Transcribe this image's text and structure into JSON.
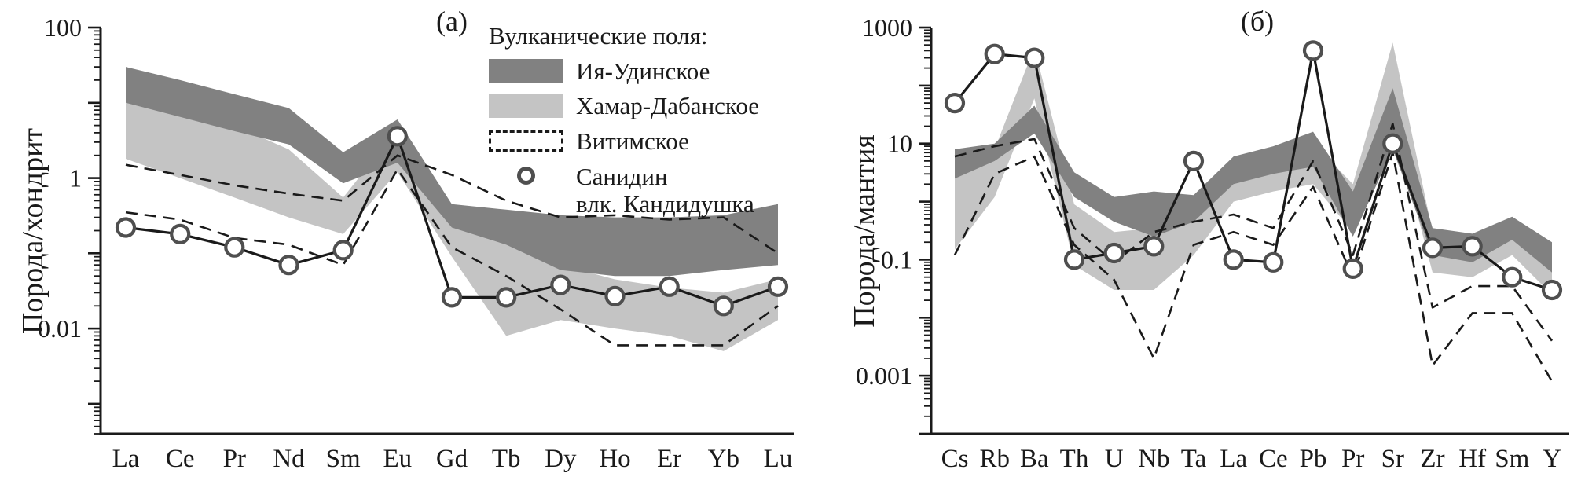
{
  "figure": {
    "background": "#ffffff",
    "colors": {
      "dark_field": "#818181",
      "light_field": "#c4c4c4",
      "line": "#1a1a1a",
      "marker_stroke": "#4f4f4f",
      "marker_fill": "#ffffff"
    },
    "legend": {
      "title": "Вулканические поля:",
      "position": "inside-top-right-of-left-panel",
      "items": [
        {
          "type": "fill-dark",
          "label": "Ия-Удинское"
        },
        {
          "type": "fill-light",
          "label": "Хамар-Дабанское"
        },
        {
          "type": "dashed",
          "label": "Витимское"
        },
        {
          "type": "marker",
          "label": "Санидин",
          "label2": "влк. Кандидушка"
        }
      ]
    }
  },
  "chart_data": [
    {
      "id": "a",
      "type": "area",
      "panel_label": "(а)",
      "ylabel": "Порода/хондрит",
      "y_scale": "log",
      "ylim": [
        0.0004,
        100
      ],
      "grid": false,
      "categories": [
        "La",
        "Ce",
        "Pr",
        "Nd",
        "Sm",
        "Eu",
        "Gd",
        "Tb",
        "Dy",
        "Ho",
        "Er",
        "Yb",
        "Lu"
      ],
      "y_ticks": [
        {
          "v": 100,
          "label": "100"
        },
        {
          "v": 1,
          "label": "1"
        },
        {
          "v": 0.01,
          "label": "0.01"
        }
      ],
      "series": [
        {
          "id": "iya-udinskoe",
          "name": "Ия-Удинское",
          "kind": "band",
          "style": "fill-dark",
          "upper": [
            30,
            20,
            13,
            8.5,
            2.2,
            6,
            0.45,
            0.38,
            0.32,
            0.3,
            0.3,
            0.32,
            0.45
          ],
          "lower": [
            10,
            6.5,
            4.2,
            2.8,
            0.85,
            1.6,
            0.22,
            0.13,
            0.06,
            0.05,
            0.05,
            0.06,
            0.07
          ]
        },
        {
          "id": "khamar-dabanskoe",
          "name": "Хамар-Дабанское",
          "kind": "band",
          "style": "fill-light",
          "upper": [
            16,
            9,
            5,
            2.4,
            0.55,
            4.5,
            0.38,
            0.16,
            0.07,
            0.045,
            0.035,
            0.03,
            0.045
          ],
          "lower": [
            1.8,
            1.0,
            0.55,
            0.3,
            0.18,
            1.2,
            0.09,
            0.008,
            0.013,
            0.01,
            0.008,
            0.005,
            0.013
          ]
        },
        {
          "id": "vitimskoe",
          "name": "Витимское",
          "kind": "dashed-band",
          "upper": [
            1.5,
            1.1,
            0.8,
            0.62,
            0.5,
            2.0,
            1.1,
            0.5,
            0.3,
            0.32,
            0.28,
            0.3,
            0.1
          ],
          "lower": [
            0.35,
            0.28,
            0.16,
            0.13,
            0.07,
            1.3,
            0.12,
            0.05,
            0.018,
            0.006,
            0.006,
            0.006,
            0.02
          ]
        },
        {
          "id": "sanidin",
          "name": "Санидин влк. Кандидушка",
          "kind": "line-markers",
          "values": [
            0.22,
            0.18,
            0.12,
            0.07,
            0.11,
            3.6,
            0.026,
            0.026,
            0.038,
            0.027,
            0.036,
            0.02,
            0.036
          ]
        }
      ]
    },
    {
      "id": "b",
      "type": "area",
      "panel_label": "(б)",
      "ylabel": "Порода/мантия",
      "y_scale": "log",
      "ylim": [
        0.0001,
        1000
      ],
      "grid": false,
      "categories": [
        "Cs",
        "Rb",
        "Ba",
        "Th",
        "U",
        "Nb",
        "Ta",
        "La",
        "Ce",
        "Pb",
        "Pr",
        "Sr",
        "Zr",
        "Hf",
        "Sm",
        "Y"
      ],
      "y_ticks": [
        {
          "v": 1000,
          "label": "1000"
        },
        {
          "v": 10,
          "label": "10"
        },
        {
          "v": 0.1,
          "label": "0.1"
        },
        {
          "v": 0.001,
          "label": "0.001"
        }
      ],
      "series": [
        {
          "id": "iya-udinskoe",
          "name": "Ия-Удинское",
          "kind": "band",
          "style": "fill-dark",
          "upper": [
            8,
            10,
            45,
            3.2,
            1.2,
            1.5,
            1.3,
            6,
            9,
            16,
            1.5,
            90,
            0.35,
            0.28,
            0.55,
            0.2
          ],
          "lower": [
            2.5,
            5,
            15,
            1.2,
            0.45,
            0.25,
            0.45,
            2,
            3,
            4,
            0.25,
            8,
            0.12,
            0.09,
            0.22,
            0.06
          ]
        },
        {
          "id": "khamar-dabanskoe",
          "name": "Хамар-Дабанское",
          "kind": "band",
          "style": "fill-light",
          "upper": [
            3,
            8,
            450,
            0.9,
            0.3,
            0.35,
            0.7,
            4,
            5,
            10,
            2,
            550,
            0.3,
            0.2,
            0.45,
            0.12
          ],
          "lower": [
            0.15,
            1.2,
            60,
            0.08,
            0.03,
            0.03,
            0.12,
            1,
            1.5,
            2,
            0.3,
            25,
            0.06,
            0.05,
            0.12,
            0.025
          ]
        },
        {
          "id": "vitimskoe",
          "name": "Витимское",
          "kind": "dashed-band",
          "upper": [
            6,
            9,
            12,
            0.35,
            0.09,
            0.3,
            0.45,
            0.6,
            0.35,
            5,
            0.12,
            22,
            0.015,
            0.035,
            0.035,
            0.004
          ],
          "lower": [
            0.12,
            3,
            6,
            0.18,
            0.045,
            0.002,
            0.18,
            0.3,
            0.18,
            1.8,
            0.05,
            7,
            0.0015,
            0.012,
            0.012,
            0.0008
          ]
        },
        {
          "id": "sanidin",
          "name": "Санидин влк. Кандидушка",
          "kind": "line-markers",
          "values": [
            50,
            350,
            300,
            0.1,
            0.13,
            0.17,
            5,
            0.1,
            0.09,
            400,
            0.07,
            10,
            0.16,
            0.17,
            0.05,
            0.03
          ]
        }
      ]
    }
  ]
}
